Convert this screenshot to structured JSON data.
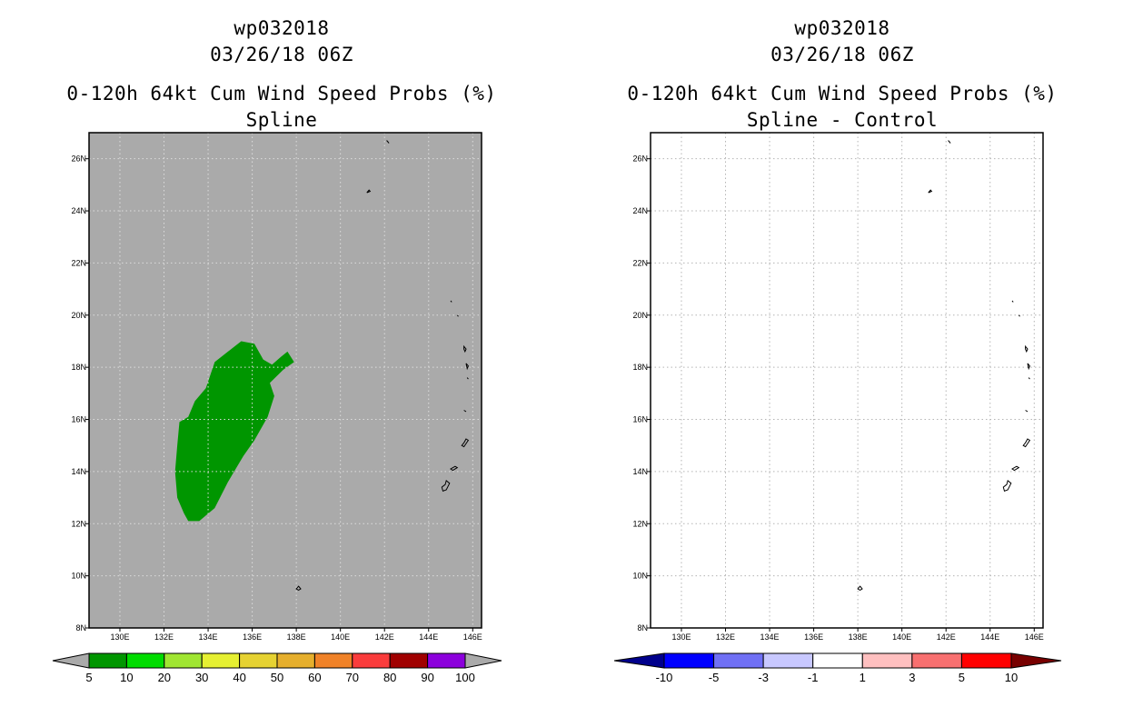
{
  "panels": [
    {
      "id": "left",
      "title_lines": [
        "wp032018",
        "03/26/18 06Z",
        "0-120h 64kt Cum Wind Speed Probs (%)",
        "Spline"
      ],
      "background": "#aaaaaa",
      "grid_color": "#dddddd",
      "colorbar": {
        "labels": [
          "5",
          "10",
          "20",
          "30",
          "40",
          "50",
          "60",
          "70",
          "80",
          "90",
          "100"
        ],
        "colors": [
          "#009600",
          "#00dc00",
          "#a0e632",
          "#e6f032",
          "#e6d232",
          "#e6af2d",
          "#f08228",
          "#fa3c3c",
          "#a00000",
          "#8c00dc"
        ],
        "left_tri": "#aaaaaa",
        "right_tri": "#aaaaaa"
      }
    },
    {
      "id": "right",
      "title_lines": [
        "wp032018",
        "03/26/18 06Z",
        "0-120h 64kt Cum Wind Speed Probs (%)",
        "Spline - Control"
      ],
      "background": "#ffffff",
      "grid_color": "#b4b4b4",
      "colorbar": {
        "labels": [
          "-10",
          "-5",
          "-3",
          "-1",
          "1",
          "3",
          "5",
          "10"
        ],
        "colors": [
          "#0000ff",
          "#7070f5",
          "#c8c8ff",
          "#ffffff",
          "#ffc0c0",
          "#f87070",
          "#ff0000"
        ],
        "left_tri": "#00008c",
        "right_tri": "#780000"
      }
    }
  ],
  "chart_data": {
    "type": "heatmap",
    "map": {
      "lon_range": [
        128.6,
        146.4
      ],
      "lat_range": [
        8,
        27
      ],
      "lon_ticks": [
        130,
        132,
        134,
        136,
        138,
        140,
        142,
        144,
        146
      ],
      "lon_labels": [
        "130E",
        "132E",
        "134E",
        "136E",
        "138E",
        "140E",
        "142E",
        "144E",
        "146E"
      ],
      "lat_ticks": [
        8,
        10,
        12,
        14,
        16,
        18,
        20,
        22,
        24,
        26
      ],
      "lat_labels": [
        "8N",
        "10N",
        "12N",
        "14N",
        "16N",
        "18N",
        "20N",
        "22N",
        "24N",
        "26N"
      ]
    },
    "probability_region": {
      "panel": "left",
      "class": "5-10",
      "color": "#009600",
      "polygon_lonlat": [
        [
          133.1,
          12.1
        ],
        [
          133.6,
          12.1
        ],
        [
          134.3,
          12.6
        ],
        [
          134.9,
          13.6
        ],
        [
          135.6,
          14.6
        ],
        [
          136.1,
          15.2
        ],
        [
          136.7,
          16.1
        ],
        [
          137.0,
          16.9
        ],
        [
          136.8,
          17.4
        ],
        [
          137.4,
          17.9
        ],
        [
          137.9,
          18.2
        ],
        [
          137.6,
          18.6
        ],
        [
          137.3,
          18.4
        ],
        [
          136.9,
          18.1
        ],
        [
          136.5,
          18.3
        ],
        [
          136.1,
          18.9
        ],
        [
          135.5,
          19.0
        ],
        [
          134.9,
          18.6
        ],
        [
          134.3,
          18.2
        ],
        [
          133.9,
          17.2
        ],
        [
          133.4,
          16.7
        ],
        [
          133.1,
          16.1
        ],
        [
          132.7,
          15.9
        ],
        [
          132.6,
          15.0
        ],
        [
          132.5,
          14.0
        ],
        [
          132.6,
          13.0
        ],
        [
          132.9,
          12.4
        ]
      ]
    },
    "difference_region": {
      "panel": "right",
      "note": "no nonzero differences"
    }
  }
}
